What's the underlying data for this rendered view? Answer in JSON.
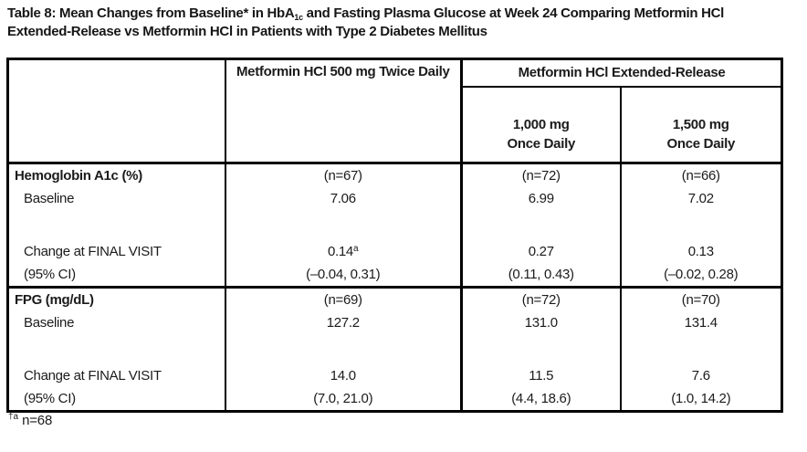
{
  "title": {
    "part1": "Table 8: Mean Changes from Baseline* in HbA",
    "subscript": "1c",
    "part2": " and Fasting Plasma Glucose at Week 24 Comparing Metformin HCl",
    "line2": "Extended-Release vs Metformin HCl in Patients with Type 2 Diabetes Mellitus"
  },
  "table": {
    "header": {
      "col2": "Metformin HCl 500 mg Twice Daily",
      "group": "Metformin HCl Extended-Release",
      "sub1_line1": "1,000 mg",
      "sub1_line2": "Once Daily",
      "sub2_line1": "1,500 mg",
      "sub2_line2": "Once Daily"
    },
    "sections": [
      {
        "label": "Hemoglobin A1c (%)",
        "n": [
          "(n=67)",
          "(n=72)",
          "(n=66)"
        ],
        "baseline_label": "Baseline",
        "baseline": [
          "7.06",
          "6.99",
          "7.02"
        ],
        "change_label": "Change at FINAL VISIT",
        "change": [
          "0.14",
          "0.27",
          "0.13"
        ],
        "change_sup": [
          "a",
          "",
          ""
        ],
        "ci_label": "(95% CI)",
        "ci": [
          "(–0.04, 0.31)",
          "(0.11, 0.43)",
          "(–0.02, 0.28)"
        ]
      },
      {
        "label": "FPG (mg/dL)",
        "n": [
          "(n=69)",
          "(n=72)",
          "(n=70)"
        ],
        "baseline_label": "Baseline",
        "baseline": [
          "127.2",
          "131.0",
          "131.4"
        ],
        "change_label": "Change at FINAL VISIT",
        "change": [
          "14.0",
          "11.5",
          "7.6"
        ],
        "change_sup": [
          "",
          "",
          ""
        ],
        "ci_label": "(95% CI)",
        "ci": [
          "(7.0, 21.0)",
          "(4.4, 18.6)",
          "(1.0, 14.2)"
        ]
      }
    ]
  },
  "footnote": {
    "marker": "†a",
    "text": "n=68"
  },
  "colors": {
    "text": "#1b1b1b",
    "border": "#000000",
    "background": "#ffffff"
  }
}
